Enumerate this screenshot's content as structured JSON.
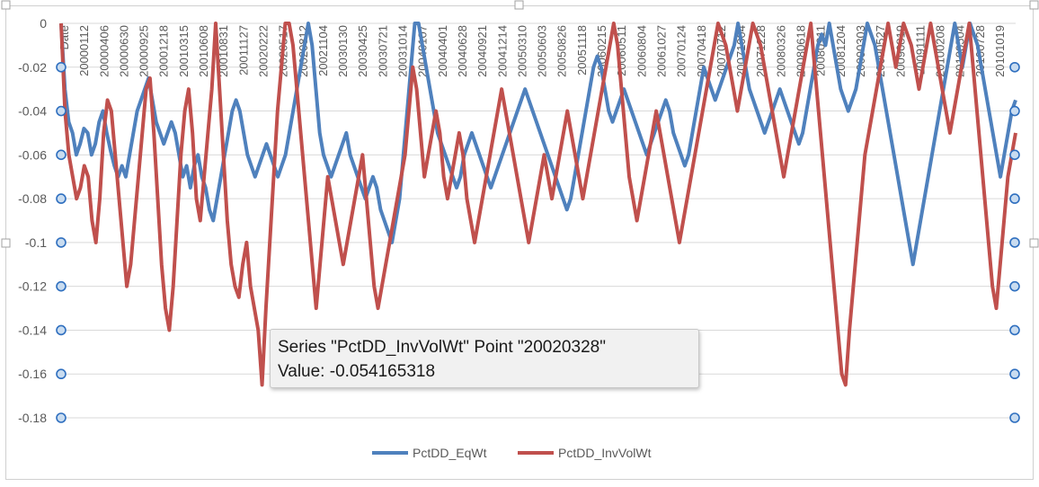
{
  "chart_data": {
    "type": "line",
    "title": "",
    "xlabel": "",
    "ylabel": "",
    "ylim": [
      -0.18,
      0
    ],
    "yticks": [
      "0",
      "-0.02",
      "-0.04",
      "-0.06",
      "-0.08",
      "-0.1",
      "-0.12",
      "-0.14",
      "-0.16",
      "-0.18"
    ],
    "ytick_values": [
      0,
      -0.02,
      -0.04,
      -0.06,
      -0.08,
      -0.1,
      -0.12,
      -0.14,
      -0.16,
      -0.18
    ],
    "x_tick_labels": [
      "Date",
      "20000112",
      "20000406",
      "20000630",
      "20000925",
      "20001218",
      "20010315",
      "20010608",
      "20010831",
      "20011127",
      "20020222",
      "20020517",
      "20020812",
      "20021104",
      "20030130",
      "20030425",
      "20030721",
      "20031014",
      "20040107",
      "20040401",
      "20040628",
      "20040921",
      "20041214",
      "20050310",
      "20050603",
      "20050826",
      "20051118",
      "20060215",
      "20060511",
      "20060804",
      "20061027",
      "20070124",
      "20070418",
      "20070712",
      "20071004",
      "20071228",
      "20080326",
      "20080618",
      "20080911",
      "20081204",
      "20090303",
      "20090527",
      "20090819",
      "20091111",
      "20100208",
      "20100504",
      "20100728",
      "20101019"
    ],
    "grid": true,
    "legend_position": "bottom",
    "series": [
      {
        "name": "PctDD_EqWt",
        "color": "#4f81bd",
        "values": [
          -0.0,
          -0.03,
          -0.045,
          -0.05,
          -0.06,
          -0.055,
          -0.048,
          -0.05,
          -0.06,
          -0.055,
          -0.045,
          -0.04,
          -0.05,
          -0.058,
          -0.065,
          -0.07,
          -0.065,
          -0.07,
          -0.06,
          -0.05,
          -0.04,
          -0.035,
          -0.03,
          -0.025,
          -0.035,
          -0.045,
          -0.05,
          -0.055,
          -0.05,
          -0.045,
          -0.05,
          -0.06,
          -0.07,
          -0.065,
          -0.075,
          -0.065,
          -0.06,
          -0.07,
          -0.075,
          -0.085,
          -0.09,
          -0.08,
          -0.07,
          -0.06,
          -0.05,
          -0.04,
          -0.035,
          -0.04,
          -0.05,
          -0.06,
          -0.065,
          -0.07,
          -0.065,
          -0.06,
          -0.055,
          -0.06,
          -0.065,
          -0.07,
          -0.065,
          -0.06,
          -0.05,
          -0.04,
          -0.03,
          -0.02,
          -0.01,
          -0.0,
          -0.01,
          -0.03,
          -0.05,
          -0.06,
          -0.065,
          -0.07,
          -0.065,
          -0.06,
          -0.055,
          -0.05,
          -0.06,
          -0.065,
          -0.07,
          -0.075,
          -0.08,
          -0.075,
          -0.07,
          -0.075,
          -0.085,
          -0.09,
          -0.095,
          -0.1,
          -0.09,
          -0.08,
          -0.06,
          -0.04,
          -0.02,
          -0.0,
          -0.0,
          -0.01,
          -0.02,
          -0.03,
          -0.04,
          -0.05,
          -0.055,
          -0.06,
          -0.065,
          -0.07,
          -0.075,
          -0.07,
          -0.06,
          -0.055,
          -0.05,
          -0.055,
          -0.06,
          -0.065,
          -0.07,
          -0.075,
          -0.07,
          -0.065,
          -0.06,
          -0.055,
          -0.05,
          -0.045,
          -0.04,
          -0.035,
          -0.03,
          -0.035,
          -0.04,
          -0.045,
          -0.05,
          -0.055,
          -0.06,
          -0.065,
          -0.07,
          -0.075,
          -0.08,
          -0.085,
          -0.08,
          -0.07,
          -0.06,
          -0.05,
          -0.04,
          -0.03,
          -0.02,
          -0.015,
          -0.02,
          -0.03,
          -0.04,
          -0.045,
          -0.04,
          -0.035,
          -0.03,
          -0.035,
          -0.04,
          -0.045,
          -0.05,
          -0.055,
          -0.06,
          -0.055,
          -0.05,
          -0.045,
          -0.04,
          -0.035,
          -0.04,
          -0.05,
          -0.055,
          -0.06,
          -0.065,
          -0.06,
          -0.05,
          -0.04,
          -0.03,
          -0.02,
          -0.025,
          -0.03,
          -0.035,
          -0.03,
          -0.025,
          -0.02,
          -0.015,
          -0.01,
          -0.0,
          -0.01,
          -0.02,
          -0.03,
          -0.035,
          -0.04,
          -0.045,
          -0.05,
          -0.045,
          -0.04,
          -0.035,
          -0.03,
          -0.035,
          -0.04,
          -0.045,
          -0.05,
          -0.055,
          -0.05,
          -0.04,
          -0.03,
          -0.02,
          -0.01,
          -0.005,
          -0.01,
          -0.0,
          -0.01,
          -0.02,
          -0.03,
          -0.035,
          -0.04,
          -0.035,
          -0.03,
          -0.02,
          -0.01,
          -0.0,
          -0.005,
          -0.01,
          -0.02,
          -0.03,
          -0.04,
          -0.05,
          -0.06,
          -0.07,
          -0.08,
          -0.09,
          -0.1,
          -0.11,
          -0.1,
          -0.09,
          -0.08,
          -0.07,
          -0.06,
          -0.05,
          -0.04,
          -0.03,
          -0.02,
          -0.01,
          -0.0,
          -0.01,
          -0.02,
          -0.01,
          -0.0,
          -0.005,
          -0.01,
          -0.02,
          -0.03,
          -0.04,
          -0.05,
          -0.06,
          -0.07,
          -0.06,
          -0.05,
          -0.04,
          -0.035
        ]
      },
      {
        "name": "PctDD_InvVolWt",
        "color": "#c0504d",
        "values": [
          -0.0,
          -0.04,
          -0.06,
          -0.07,
          -0.08,
          -0.075,
          -0.065,
          -0.07,
          -0.09,
          -0.1,
          -0.08,
          -0.05,
          -0.035,
          -0.04,
          -0.06,
          -0.08,
          -0.1,
          -0.12,
          -0.11,
          -0.09,
          -0.07,
          -0.05,
          -0.03,
          -0.025,
          -0.05,
          -0.08,
          -0.11,
          -0.13,
          -0.14,
          -0.12,
          -0.09,
          -0.06,
          -0.04,
          -0.03,
          -0.05,
          -0.08,
          -0.09,
          -0.07,
          -0.05,
          -0.03,
          -0.0,
          -0.03,
          -0.06,
          -0.09,
          -0.11,
          -0.12,
          -0.125,
          -0.11,
          -0.1,
          -0.12,
          -0.13,
          -0.14,
          -0.165,
          -0.13,
          -0.1,
          -0.07,
          -0.04,
          -0.02,
          -0.0,
          -0.0,
          -0.01,
          -0.03,
          -0.05,
          -0.07,
          -0.09,
          -0.11,
          -0.13,
          -0.11,
          -0.09,
          -0.07,
          -0.08,
          -0.09,
          -0.1,
          -0.11,
          -0.1,
          -0.09,
          -0.08,
          -0.07,
          -0.06,
          -0.08,
          -0.1,
          -0.12,
          -0.13,
          -0.12,
          -0.11,
          -0.1,
          -0.09,
          -0.08,
          -0.07,
          -0.06,
          -0.04,
          -0.02,
          -0.03,
          -0.05,
          -0.07,
          -0.06,
          -0.05,
          -0.04,
          -0.05,
          -0.07,
          -0.08,
          -0.07,
          -0.06,
          -0.05,
          -0.06,
          -0.08,
          -0.09,
          -0.1,
          -0.09,
          -0.08,
          -0.07,
          -0.06,
          -0.05,
          -0.04,
          -0.03,
          -0.04,
          -0.05,
          -0.06,
          -0.07,
          -0.08,
          -0.09,
          -0.1,
          -0.09,
          -0.08,
          -0.07,
          -0.06,
          -0.07,
          -0.08,
          -0.07,
          -0.06,
          -0.05,
          -0.04,
          -0.05,
          -0.06,
          -0.07,
          -0.08,
          -0.07,
          -0.06,
          -0.05,
          -0.04,
          -0.03,
          -0.02,
          -0.01,
          -0.0,
          -0.01,
          -0.03,
          -0.05,
          -0.07,
          -0.08,
          -0.09,
          -0.08,
          -0.07,
          -0.06,
          -0.05,
          -0.04,
          -0.05,
          -0.06,
          -0.07,
          -0.08,
          -0.09,
          -0.1,
          -0.09,
          -0.08,
          -0.07,
          -0.06,
          -0.05,
          -0.04,
          -0.03,
          -0.02,
          -0.01,
          -0.0,
          -0.005,
          -0.01,
          -0.02,
          -0.03,
          -0.04,
          -0.03,
          -0.02,
          -0.01,
          -0.0,
          -0.005,
          -0.01,
          -0.02,
          -0.03,
          -0.04,
          -0.05,
          -0.06,
          -0.07,
          -0.06,
          -0.05,
          -0.04,
          -0.03,
          -0.02,
          -0.01,
          -0.0,
          -0.02,
          -0.04,
          -0.06,
          -0.08,
          -0.1,
          -0.12,
          -0.14,
          -0.16,
          -0.165,
          -0.14,
          -0.12,
          -0.1,
          -0.08,
          -0.06,
          -0.05,
          -0.04,
          -0.03,
          -0.02,
          -0.01,
          -0.0,
          -0.01,
          -0.02,
          -0.01,
          -0.0,
          -0.005,
          -0.01,
          -0.02,
          -0.03,
          -0.02,
          -0.01,
          -0.0,
          -0.01,
          -0.02,
          -0.03,
          -0.04,
          -0.05,
          -0.04,
          -0.03,
          -0.02,
          -0.01,
          -0.0,
          -0.02,
          -0.04,
          -0.06,
          -0.08,
          -0.1,
          -0.12,
          -0.13,
          -0.11,
          -0.09,
          -0.07,
          -0.06,
          -0.05
        ]
      }
    ]
  },
  "tooltip": {
    "line1": "Series \"PctDD_InvVolWt\" Point \"20020328\"",
    "line2": "Value: -0.054165318"
  }
}
